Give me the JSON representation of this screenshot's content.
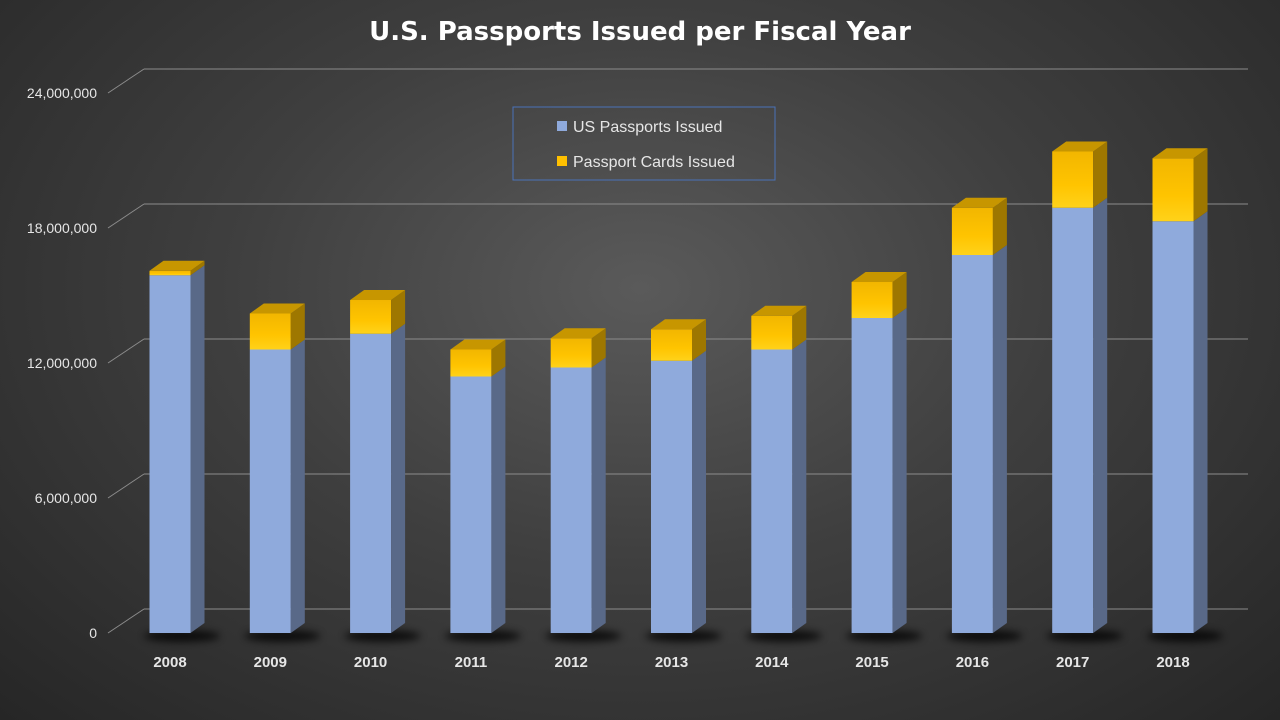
{
  "chart_data": {
    "type": "bar",
    "stacked": true,
    "three_d": true,
    "title": "U.S. Passports Issued per Fiscal Year",
    "xlabel": "",
    "ylabel": "",
    "ylim": [
      0,
      24000000
    ],
    "yticks": [
      0,
      6000000,
      12000000,
      18000000,
      24000000
    ],
    "ytick_labels": [
      "0",
      "6,000,000",
      "12,000,000",
      "18,000,000",
      "24,000,000"
    ],
    "categories": [
      "2008",
      "2009",
      "2010",
      "2011",
      "2012",
      "2013",
      "2014",
      "2015",
      "2016",
      "2017",
      "2018"
    ],
    "series": [
      {
        "name": "US Passports Issued",
        "color": "#8FAADC",
        "values": [
          15900000,
          12600000,
          13300000,
          11400000,
          11800000,
          12100000,
          12600000,
          14000000,
          16800000,
          18900000,
          18300000
        ]
      },
      {
        "name": "Passport Cards Issued",
        "color": "#FFC000",
        "values": [
          200000,
          1600000,
          1500000,
          1200000,
          1300000,
          1400000,
          1500000,
          1600000,
          2100000,
          2500000,
          2800000
        ]
      }
    ],
    "grid": true,
    "legend_position": "top-center"
  }
}
